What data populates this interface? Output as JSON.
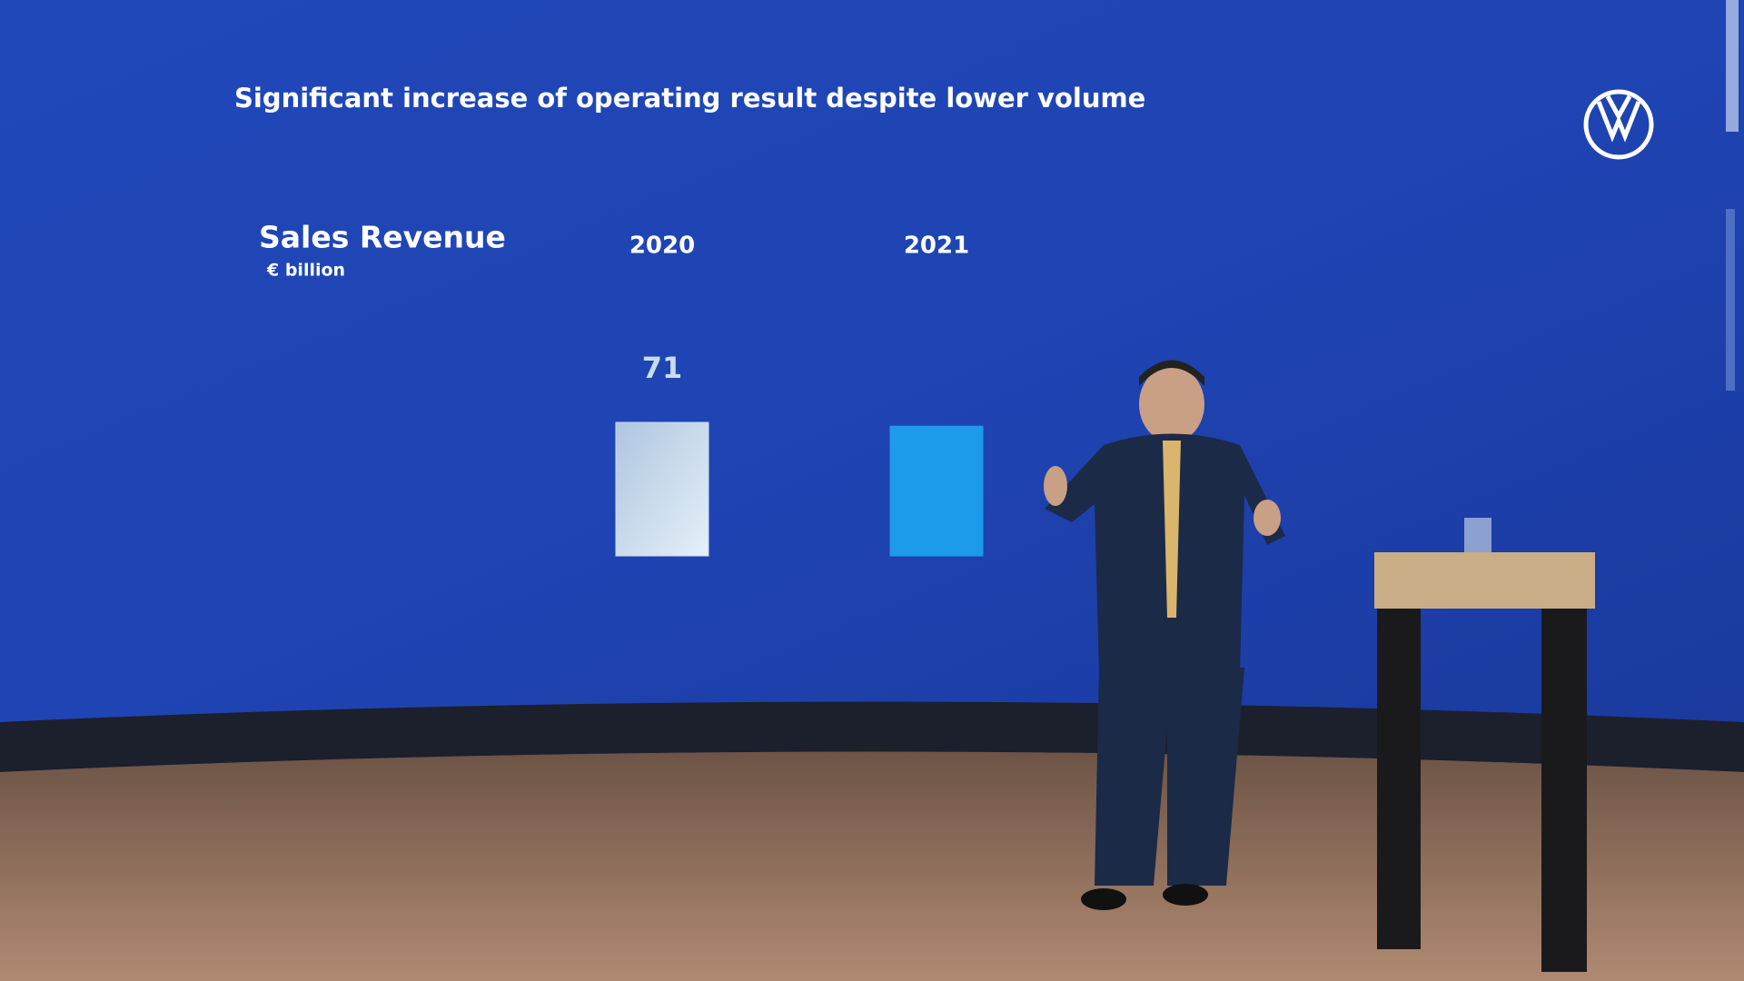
{
  "chart_data": {
    "type": "bar",
    "title": "Significant increase of operating result despite lower volume",
    "subtitle": "Sales Revenue",
    "unit_label": "€ billion",
    "categories": [
      "2020",
      "2021"
    ],
    "values": [
      71,
      69
    ],
    "colors": [
      "#c9dcee",
      "#1b9be9"
    ]
  }
}
